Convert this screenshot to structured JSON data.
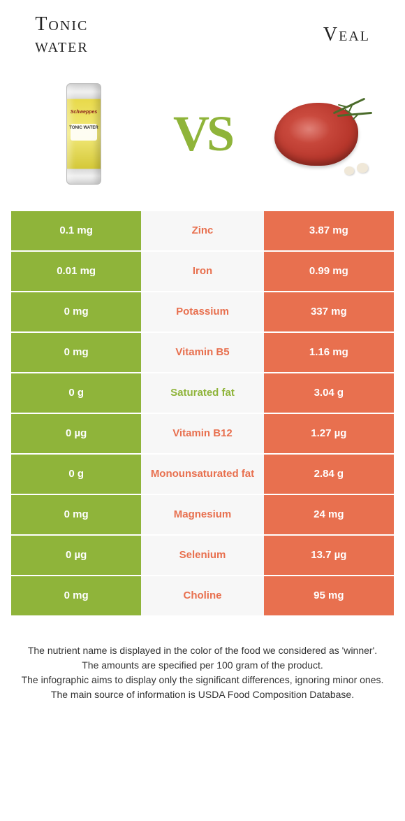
{
  "colors": {
    "green": "#8fb43a",
    "orange": "#e8704f",
    "mid_bg": "#f7f7f7",
    "white_text": "#ffffff"
  },
  "header": {
    "left_title_line1": "Tonic",
    "left_title_line2": "water",
    "right_title": "Veal",
    "vs": "VS"
  },
  "rows": [
    {
      "left": "0.1 mg",
      "name": "Zinc",
      "right": "3.87 mg",
      "winner": "right"
    },
    {
      "left": "0.01 mg",
      "name": "Iron",
      "right": "0.99 mg",
      "winner": "right"
    },
    {
      "left": "0 mg",
      "name": "Potassium",
      "right": "337 mg",
      "winner": "right"
    },
    {
      "left": "0 mg",
      "name": "Vitamin B5",
      "right": "1.16 mg",
      "winner": "right"
    },
    {
      "left": "0 g",
      "name": "Saturated fat",
      "right": "3.04 g",
      "winner": "left"
    },
    {
      "left": "0 µg",
      "name": "Vitamin B12",
      "right": "1.27 µg",
      "winner": "right"
    },
    {
      "left": "0 g",
      "name": "Monounsaturated fat",
      "right": "2.84 g",
      "winner": "right"
    },
    {
      "left": "0 mg",
      "name": "Magnesium",
      "right": "24 mg",
      "winner": "right"
    },
    {
      "left": "0 µg",
      "name": "Selenium",
      "right": "13.7 µg",
      "winner": "right"
    },
    {
      "left": "0 mg",
      "name": "Choline",
      "right": "95 mg",
      "winner": "right"
    }
  ],
  "footer": {
    "line1": "The nutrient name is displayed in the color of the food we considered as 'winner'.",
    "line2": "The amounts are specified per 100 gram of the product.",
    "line3": "The infographic aims to display only the significant differences, ignoring minor ones.",
    "line4": "The main source of information is USDA Food Composition Database."
  }
}
